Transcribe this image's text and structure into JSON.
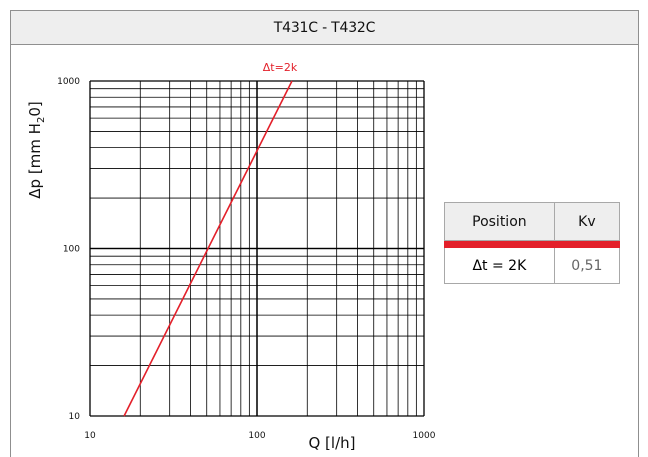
{
  "title": "T431C - T432C",
  "chart_data": {
    "type": "line",
    "x_scale": "log",
    "y_scale": "log",
    "xlim": [
      10,
      1000
    ],
    "ylim": [
      10,
      1000
    ],
    "xlabel": "Q [l/h]",
    "ylabel": "Δp [mm H₂0]",
    "x_ticks": [
      "10",
      "100",
      "1000"
    ],
    "y_ticks": [
      "10",
      "100",
      "1000"
    ],
    "grid": true,
    "series": [
      {
        "name": "Δt=2k",
        "color": "#e3202a",
        "x": [
          16,
          162
        ],
        "y": [
          10,
          1000
        ]
      }
    ]
  },
  "table": {
    "headers": [
      "Position",
      "Kv"
    ],
    "rows": [
      [
        "Δt = 2K",
        "0,51"
      ]
    ]
  }
}
